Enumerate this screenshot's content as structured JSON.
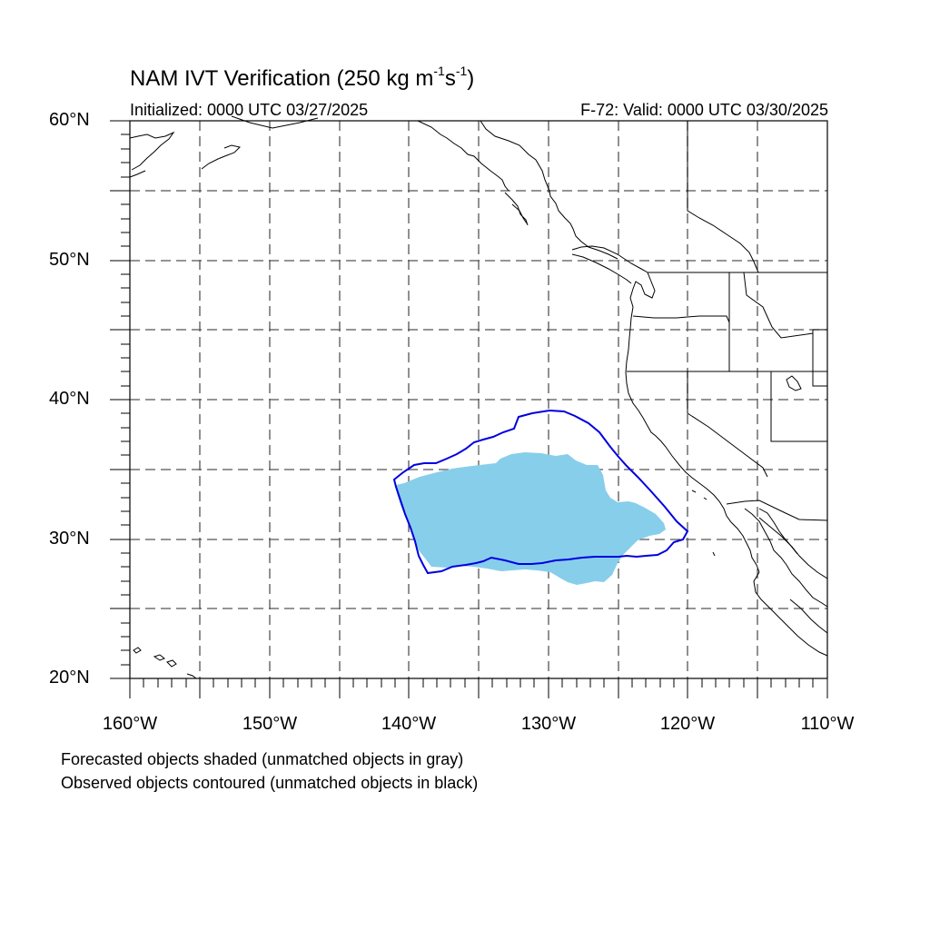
{
  "title": {
    "prefix": "NAM IVT Verification (250 kg m",
    "exp1": "-1",
    "mid": "s",
    "exp2": "-1",
    "suffix": ")"
  },
  "initialized": "Initialized: 0000 UTC 03/27/2025",
  "valid": "F-72: Valid: 0000 UTC 03/30/2025",
  "lat_labels": [
    "60°N",
    "50°N",
    "40°N",
    "30°N",
    "20°N"
  ],
  "lon_labels": [
    "160°W",
    "150°W",
    "140°W",
    "130°W",
    "120°W",
    "110°W"
  ],
  "notes": {
    "forecast": "Forecasted objects shaded (unmatched objects in gray)",
    "observed": "Observed objects contoured (unmatched objects in black)"
  },
  "colors": {
    "forecast_fill": "#87ceeb",
    "observed_contour": "#0000e0",
    "grid": "#555555",
    "coast": "#000000"
  }
}
